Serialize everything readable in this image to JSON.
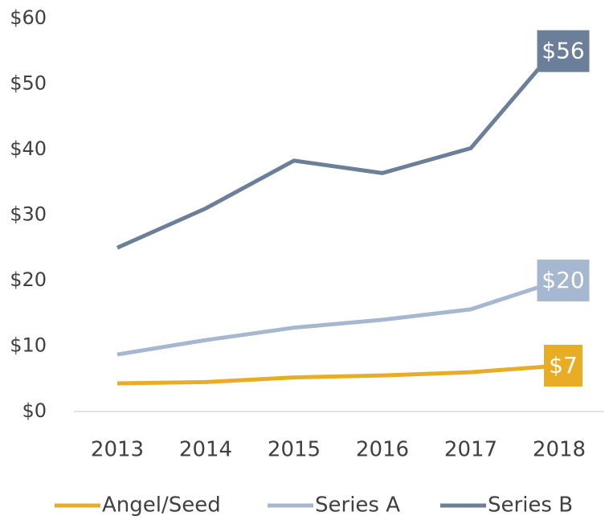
{
  "chart_data": {
    "type": "line",
    "categories": [
      "2013",
      "2014",
      "2015",
      "2016",
      "2017",
      "2018"
    ],
    "series": [
      {
        "name": "Angel/Seed",
        "color": "#e8ad24",
        "values": [
          4.3,
          4.5,
          5.2,
          5.5,
          6,
          7
        ],
        "value_labels": [
          null,
          null,
          null,
          null,
          null,
          "$7"
        ]
      },
      {
        "name": "Series A",
        "color": "#a6b8cf",
        "values": [
          8.7,
          10.9,
          12.8,
          14,
          15.6,
          20
        ],
        "value_labels": [
          null,
          null,
          null,
          null,
          null,
          "$20"
        ]
      },
      {
        "name": "Series B",
        "color": "#6b7f99",
        "values": [
          25,
          31,
          38.3,
          36.4,
          40.2,
          56
        ],
        "value_labels": [
          null,
          null,
          null,
          null,
          null,
          "$56"
        ]
      }
    ],
    "ylim": [
      0,
      60
    ],
    "yticks": [
      {
        "value": 0,
        "label": "$0"
      },
      {
        "value": 10,
        "label": "$10"
      },
      {
        "value": 20,
        "label": "$20"
      },
      {
        "value": 30,
        "label": "$30"
      },
      {
        "value": 40,
        "label": "$40"
      },
      {
        "value": 50,
        "label": "$50"
      },
      {
        "value": 60,
        "label": "$60"
      }
    ],
    "grid": false,
    "legend": "bottom"
  }
}
